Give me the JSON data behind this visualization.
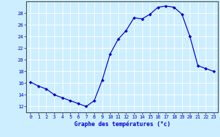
{
  "hours": [
    0,
    1,
    2,
    3,
    4,
    5,
    6,
    7,
    8,
    9,
    10,
    11,
    12,
    13,
    14,
    15,
    16,
    17,
    18,
    19,
    20,
    21,
    22,
    23
  ],
  "temps": [
    16.2,
    15.5,
    15.0,
    14.0,
    13.5,
    13.0,
    12.5,
    12.0,
    13.0,
    16.5,
    21.0,
    23.5,
    25.0,
    27.2,
    27.0,
    27.8,
    29.0,
    29.2,
    29.0,
    27.8,
    24.0,
    19.0,
    18.5,
    18.0
  ],
  "xlabel": "Graphe des températures (°c)",
  "ylim": [
    11,
    30
  ],
  "xlim_left": -0.5,
  "xlim_right": 23.5,
  "yticks": [
    12,
    14,
    16,
    18,
    20,
    22,
    24,
    26,
    28
  ],
  "xticks": [
    0,
    1,
    2,
    3,
    4,
    5,
    6,
    7,
    8,
    9,
    10,
    11,
    12,
    13,
    14,
    15,
    16,
    17,
    18,
    19,
    20,
    21,
    22,
    23
  ],
  "line_color": "#0000cc",
  "marker": "D",
  "marker_size": 2.0,
  "bg_color": "#cceeff",
  "grid_color": "#ffffff",
  "axis_color": "#444444",
  "label_color": "#0000cc",
  "tick_color": "#0000cc",
  "xlabel_fontsize": 6.0,
  "tick_fontsize": 5.0,
  "xlabel_bold": true
}
